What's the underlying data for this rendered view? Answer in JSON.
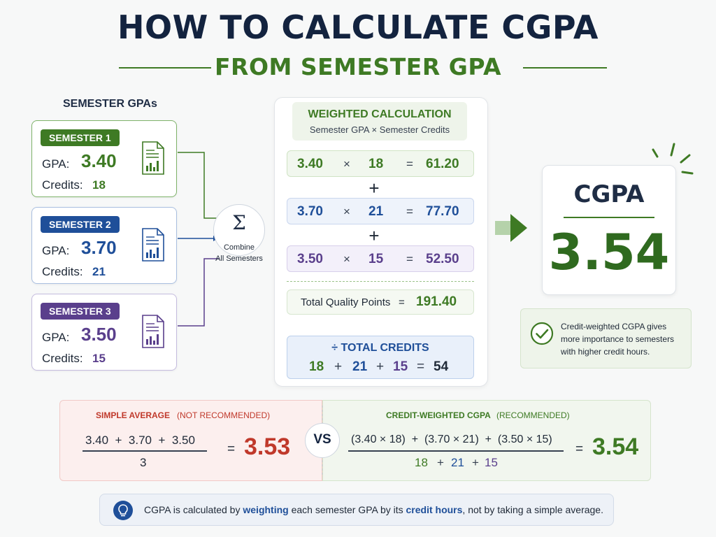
{
  "header": {
    "title": "HOW TO CALCULATE CGPA",
    "subtitle": "FROM SEMESTER GPA"
  },
  "semesters": {
    "heading": "SEMESTER GPAs",
    "items": [
      {
        "name": "SEMESTER 1",
        "gpa_label": "GPA:",
        "gpa": "3.40",
        "credits_label": "Credits:",
        "credits": "18",
        "color": "#3e7a24"
      },
      {
        "name": "SEMESTER 2",
        "gpa_label": "GPA:",
        "gpa": "3.70",
        "credits_label": "Credits:",
        "credits": "21",
        "color": "#1f4f99"
      },
      {
        "name": "SEMESTER 3",
        "gpa_label": "GPA:",
        "gpa": "3.50",
        "credits_label": "Credits:",
        "credits": "15",
        "color": "#5a3f8c"
      }
    ]
  },
  "combine": {
    "symbol": "Σ",
    "line1": "Combine",
    "line2": "All Semesters"
  },
  "calculation": {
    "title": "WEIGHTED CALCULATION",
    "subtitle": "Semester GPA × Semester Credits",
    "rows": [
      {
        "gpa": "3.40",
        "times": "×",
        "credits": "18",
        "equals": "=",
        "product": "61.20"
      },
      {
        "gpa": "3.70",
        "times": "×",
        "credits": "21",
        "equals": "=",
        "product": "77.70"
      },
      {
        "gpa": "3.50",
        "times": "×",
        "credits": "15",
        "equals": "=",
        "product": "52.50"
      }
    ],
    "plus": "+",
    "total_quality_label": "Total Quality Points",
    "total_quality_equals": "=",
    "total_quality_value": "191.40",
    "total_credits_title": "÷ TOTAL CREDITS",
    "total_credits": {
      "c1": "18",
      "p1": "+",
      "c2": "21",
      "p2": "+",
      "c3": "15",
      "eq": "=",
      "sum": "54"
    }
  },
  "result": {
    "label": "CGPA",
    "value": "3.54",
    "note": "Credit-weighted CGPA gives more importance to semesters with higher credit hours."
  },
  "comparison": {
    "simple": {
      "title": "SIMPLE AVERAGE",
      "tag": "(NOT RECOMMENDED)",
      "numerator": "3.40  +  3.70  +  3.50",
      "denominator": "3",
      "equals": "=",
      "result": "3.53"
    },
    "vs": "VS",
    "weighted": {
      "title": "CREDIT-WEIGHTED CGPA",
      "tag": "(RECOMMENDED)",
      "numerator": "(3.40 × 18)  +  (3.70 × 21)  +  (3.50 × 15)",
      "den_c1": "18",
      "den_p1": "+",
      "den_c2": "21",
      "den_p2": "+",
      "den_c3": "15",
      "equals": "=",
      "result": "3.54"
    }
  },
  "tip": {
    "icon": "lightbulb-icon",
    "part1": "CGPA is calculated by ",
    "emph1": "weighting",
    "part2": " each semester GPA by its ",
    "emph2": "credit hours",
    "part3": ", not by taking a simple average."
  },
  "colors": {
    "navy": "#13233f",
    "green": "#3e7a24",
    "blue": "#1f4f99",
    "purple": "#5a3f8c",
    "red": "#c0392b"
  }
}
